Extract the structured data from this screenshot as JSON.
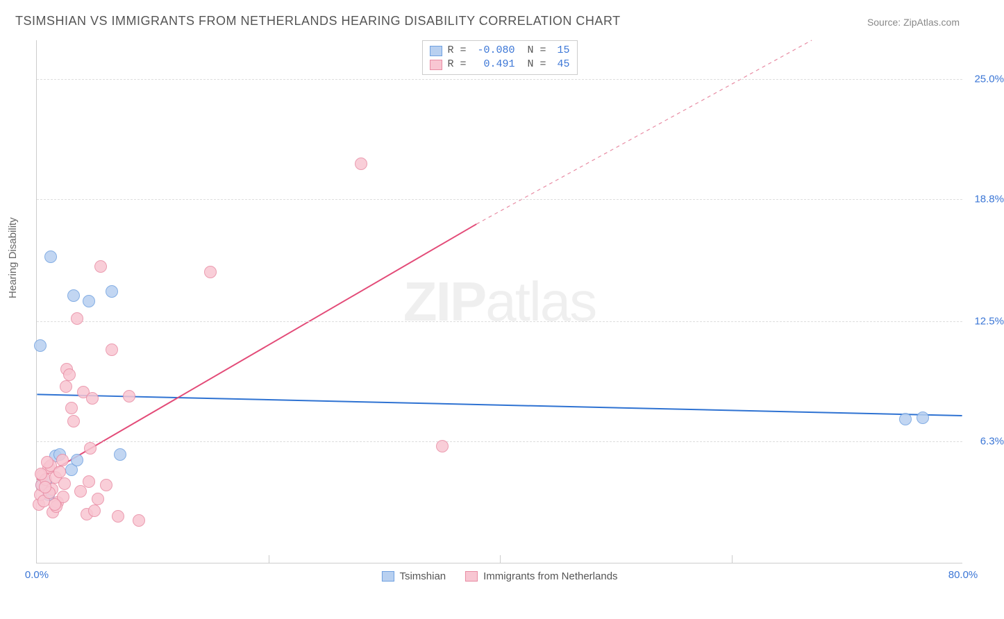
{
  "title": "TSIMSHIAN VS IMMIGRANTS FROM NETHERLANDS HEARING DISABILITY CORRELATION CHART",
  "source_label": "Source:",
  "source_name": "ZipAtlas.com",
  "ylabel": "Hearing Disability",
  "watermark_bold": "ZIP",
  "watermark_light": "atlas",
  "chart": {
    "type": "scatter",
    "xlim": [
      0,
      80
    ],
    "ylim": [
      0,
      27
    ],
    "xticks": [
      {
        "v": 0,
        "label": "0.0%",
        "color": "#3b76d6"
      },
      {
        "v": 80,
        "label": "80.0%",
        "color": "#3b76d6"
      }
    ],
    "yticks": [
      {
        "v": 6.3,
        "label": "6.3%",
        "color": "#3b76d6"
      },
      {
        "v": 12.5,
        "label": "12.5%",
        "color": "#3b76d6"
      },
      {
        "v": 18.8,
        "label": "18.8%",
        "color": "#3b76d6"
      },
      {
        "v": 25.0,
        "label": "25.0%",
        "color": "#3b76d6"
      }
    ],
    "grid_h": [
      6.3,
      12.5,
      18.8,
      25.0
    ],
    "grid_v": [
      20,
      40,
      60
    ],
    "grid_color": "#dddddd",
    "background_color": "#ffffff",
    "marker_radius": 9,
    "marker_border_width": 1.2,
    "series": [
      {
        "name": "Tsimshian",
        "fill": "#b8d0f0",
        "stroke": "#6fa0e0",
        "points": [
          [
            0.3,
            11.2
          ],
          [
            1.2,
            15.8
          ],
          [
            3.2,
            13.8
          ],
          [
            4.5,
            13.5
          ],
          [
            6.5,
            14.0
          ],
          [
            0.8,
            4.2
          ],
          [
            1.0,
            3.5
          ],
          [
            1.6,
            5.5
          ],
          [
            2.0,
            5.6
          ],
          [
            3.0,
            4.8
          ],
          [
            7.2,
            5.6
          ],
          [
            75.0,
            7.4
          ],
          [
            76.5,
            7.5
          ],
          [
            0.4,
            4.0
          ],
          [
            3.5,
            5.3
          ]
        ],
        "trend": {
          "x1": 0,
          "y1": 8.7,
          "x2": 80,
          "y2": 7.6,
          "color": "#2e72d2",
          "width": 2,
          "dash": "none"
        }
      },
      {
        "name": "Immigrants from Netherlands",
        "fill": "#f8c6d2",
        "stroke": "#e88ba3",
        "points": [
          [
            0.2,
            3.0
          ],
          [
            0.3,
            3.5
          ],
          [
            0.4,
            4.0
          ],
          [
            0.5,
            4.5
          ],
          [
            0.6,
            3.2
          ],
          [
            0.8,
            4.3
          ],
          [
            1.0,
            4.9
          ],
          [
            1.2,
            5.0
          ],
          [
            1.3,
            3.8
          ],
          [
            1.4,
            2.6
          ],
          [
            1.6,
            4.4
          ],
          [
            1.8,
            3.1
          ],
          [
            2.0,
            4.7
          ],
          [
            2.2,
            5.3
          ],
          [
            2.3,
            3.4
          ],
          [
            2.5,
            9.1
          ],
          [
            2.6,
            10.0
          ],
          [
            2.8,
            9.7
          ],
          [
            3.0,
            8.0
          ],
          [
            3.2,
            7.3
          ],
          [
            3.5,
            12.6
          ],
          [
            4.0,
            8.8
          ],
          [
            4.3,
            2.5
          ],
          [
            4.5,
            4.2
          ],
          [
            4.8,
            8.5
          ],
          [
            5.0,
            2.7
          ],
          [
            5.3,
            3.3
          ],
          [
            5.5,
            15.3
          ],
          [
            6.0,
            4.0
          ],
          [
            6.5,
            11.0
          ],
          [
            7.0,
            2.4
          ],
          [
            8.0,
            8.6
          ],
          [
            8.8,
            2.2
          ],
          [
            15.0,
            15.0
          ],
          [
            28.0,
            20.6
          ],
          [
            35.0,
            6.0
          ],
          [
            1.1,
            3.6
          ],
          [
            1.7,
            2.9
          ],
          [
            0.9,
            5.2
          ],
          [
            2.4,
            4.1
          ],
          [
            0.7,
            3.9
          ],
          [
            3.8,
            3.7
          ],
          [
            4.6,
            5.9
          ],
          [
            0.35,
            4.6
          ],
          [
            1.55,
            3.0
          ]
        ],
        "trend_solid": {
          "x1": 0,
          "y1": 4.3,
          "x2": 38,
          "y2": 17.5,
          "color": "#e34b78",
          "width": 2
        },
        "trend_dash": {
          "x1": 38,
          "y1": 17.5,
          "x2": 67,
          "y2": 27.0,
          "color": "#e88ba3",
          "width": 1.2,
          "dash": "5,5"
        }
      }
    ],
    "legend_box": {
      "rows": [
        {
          "swatch_fill": "#b8d0f0",
          "swatch_stroke": "#6fa0e0",
          "r_label": "R =",
          "r_val": "-0.080",
          "n_label": "N =",
          "n_val": "15",
          "text_color": "#555555",
          "val_color": "#3b76d6"
        },
        {
          "swatch_fill": "#f8c6d2",
          "swatch_stroke": "#e88ba3",
          "r_label": "R =",
          "r_val": " 0.491",
          "n_label": "N =",
          "n_val": "45",
          "text_color": "#555555",
          "val_color": "#3b76d6"
        }
      ]
    },
    "bottom_legend": [
      {
        "swatch_fill": "#b8d0f0",
        "swatch_stroke": "#6fa0e0",
        "label": "Tsimshian"
      },
      {
        "swatch_fill": "#f8c6d2",
        "swatch_stroke": "#e88ba3",
        "label": "Immigrants from Netherlands"
      }
    ]
  }
}
